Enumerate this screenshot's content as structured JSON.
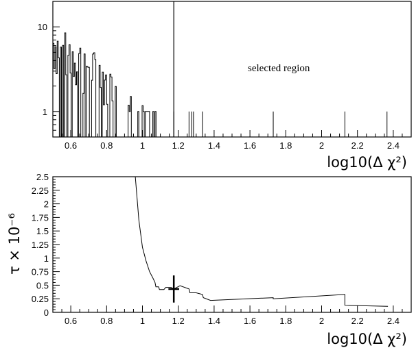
{
  "chart_data": [
    {
      "type": "histogram",
      "ylog": true,
      "xlim": [
        0.5,
        2.5
      ],
      "ylim": [
        0.5,
        20
      ],
      "xlabel": "log10(Δ χ²)",
      "ylabel": "",
      "xticks": [
        "0.6",
        "0.8",
        "1",
        "1.2",
        "1.4",
        "1.6",
        "1.8",
        "2",
        "2.2",
        "2.4"
      ],
      "yticks": [
        "1",
        "10"
      ],
      "annotation": "selected region",
      "cut_x": 1.175,
      "dense_region": {
        "x_start": 0.5,
        "x_end": 1.08,
        "bin_width": 0.006,
        "seed": 7
      },
      "sparse_spikes": [
        {
          "x": 1.175,
          "y": 1
        },
        {
          "x": 1.26,
          "y": 1
        },
        {
          "x": 1.275,
          "y": 1
        },
        {
          "x": 1.285,
          "y": 1
        },
        {
          "x": 1.335,
          "y": 1
        },
        {
          "x": 1.73,
          "y": 1
        },
        {
          "x": 2.13,
          "y": 1
        },
        {
          "x": 2.365,
          "y": 1
        }
      ]
    },
    {
      "type": "line",
      "xlim": [
        0.5,
        2.5
      ],
      "ylim": [
        0,
        2.5
      ],
      "xlabel": "log10(Δ χ²)",
      "ylabel": "τ × 10⁻⁶",
      "xticks": [
        "0.6",
        "0.8",
        "1",
        "1.2",
        "1.4",
        "1.6",
        "1.8",
        "2",
        "2.2",
        "2.4"
      ],
      "yticks": [
        "0",
        "0.25",
        "0.5",
        "0.75",
        "1",
        "1.25",
        "1.5",
        "1.75",
        "2",
        "2.25",
        "2.5"
      ],
      "series": [
        {
          "x": [
            0.96,
            0.97,
            0.98,
            0.99,
            1.0,
            1.02,
            1.04,
            1.06,
            1.07,
            1.075,
            1.09,
            1.095,
            1.12,
            1.13,
            1.16,
            1.175,
            1.21,
            1.26,
            1.265,
            1.3,
            1.335,
            1.34,
            1.38,
            1.73,
            1.73,
            2.13,
            2.13,
            2.37
          ],
          "y": [
            2.5,
            2.1,
            1.7,
            1.45,
            1.2,
            0.95,
            0.75,
            0.62,
            0.55,
            0.47,
            0.47,
            0.42,
            0.42,
            0.46,
            0.46,
            0.43,
            0.49,
            0.43,
            0.36,
            0.36,
            0.33,
            0.27,
            0.22,
            0.27,
            0.25,
            0.33,
            0.13,
            0.11
          ]
        }
      ],
      "marker": {
        "x": 1.175,
        "y": 0.43,
        "yerr": 0.25,
        "xerr": 0.03
      }
    }
  ]
}
